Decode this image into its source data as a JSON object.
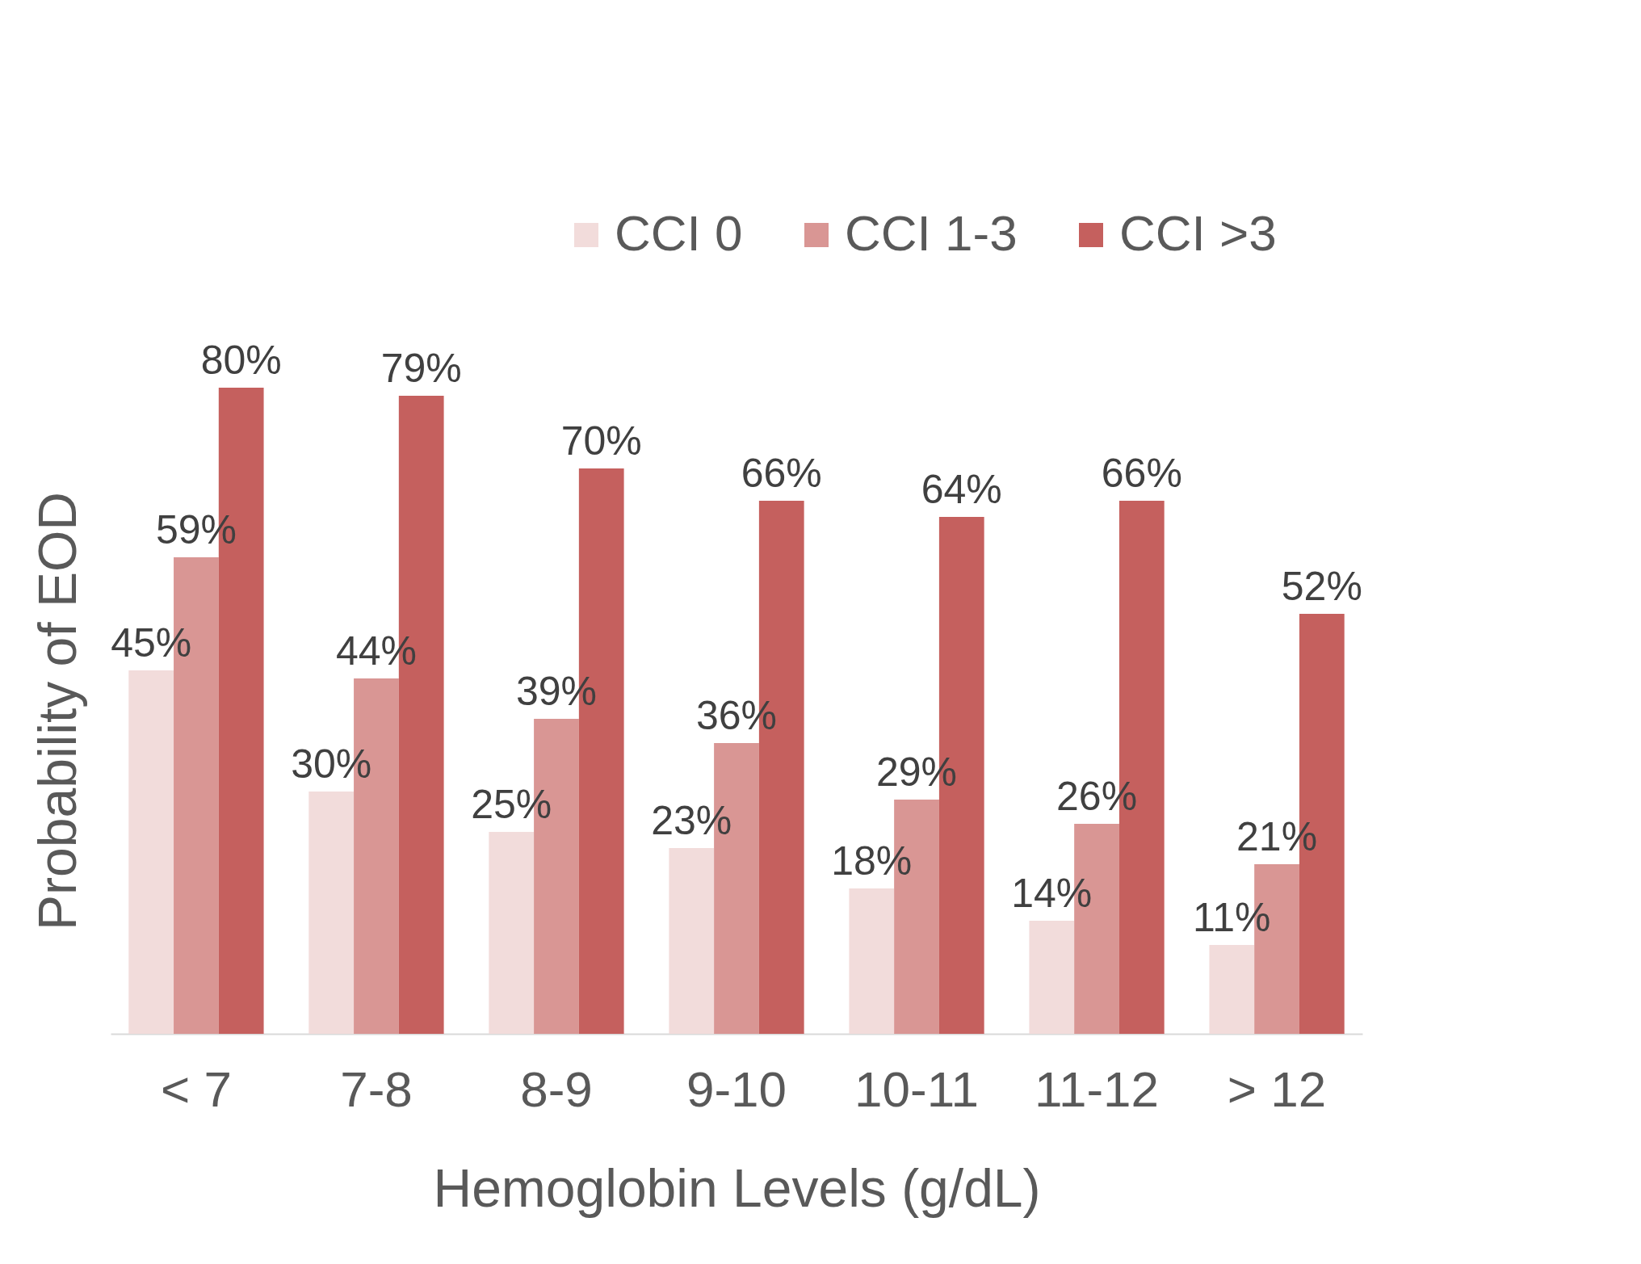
{
  "chart_data": {
    "type": "bar",
    "xlabel": "Hemoglobin Levels (g/dL)",
    "ylabel": "Probability of EOD",
    "categories": [
      "< 7",
      "7-8",
      "8-9",
      "9-10",
      "10-11",
      "11-12",
      "> 12"
    ],
    "series": [
      {
        "name": "CCI 0",
        "color": "#f2dcdb",
        "values": [
          45,
          30,
          25,
          23,
          18,
          14,
          11
        ],
        "value_labels": [
          "45%",
          "30%",
          "25%",
          "23%",
          "18%",
          "14%",
          "11%"
        ]
      },
      {
        "name": "CCI 1-3",
        "color": "#d99694",
        "values": [
          59,
          44,
          39,
          36,
          29,
          26,
          21
        ],
        "value_labels": [
          "59%",
          "44%",
          "39%",
          "36%",
          "29%",
          "26%",
          "21%"
        ]
      },
      {
        "name": "CCI >3",
        "color": "#c5605e",
        "values": [
          80,
          79,
          70,
          66,
          64,
          66,
          52
        ],
        "value_labels": [
          "80%",
          "79%",
          "70%",
          "66%",
          "64%",
          "66%",
          "52%"
        ]
      }
    ],
    "legend": "top right",
    "grid": false
  }
}
